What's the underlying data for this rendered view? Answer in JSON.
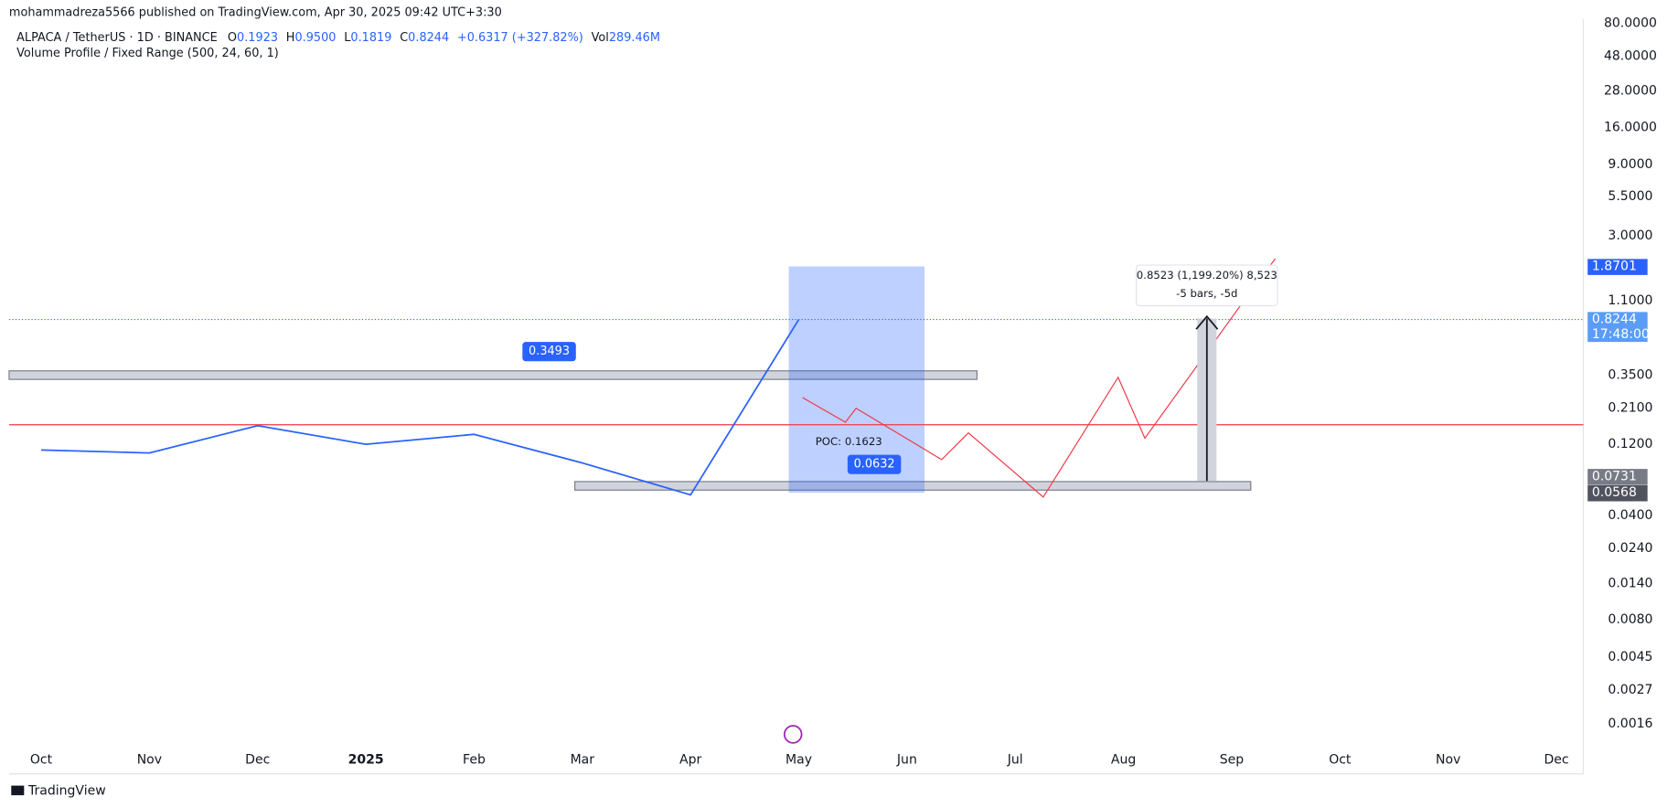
{
  "header": {
    "publisher": "mohammadreza5566 published on TradingView.com, Apr 30, 2025 09:42 UTC+3:30",
    "symbol": "ALPACA / TetherUS · 1D · BINANCE",
    "ohlc": [
      {
        "key": "O",
        "value": "0.1923"
      },
      {
        "key": "H",
        "value": "0.9500"
      },
      {
        "key": "L",
        "value": "0.1819"
      },
      {
        "key": "C",
        "value": "0.8244"
      }
    ],
    "change": "+0.6317 (+327.82%)",
    "vol_key": "Vol",
    "vol_value": "289.46M",
    "indicator": "Volume Profile / Fixed Range (500, 24, 60, 1)"
  },
  "footer": {
    "brand": "TradingView"
  },
  "chart_data": {
    "type": "line",
    "log_scale": true,
    "categories": [
      "Oct",
      "Nov",
      "Dec",
      "2025",
      "Feb",
      "Mar",
      "Apr",
      "May",
      "Jun",
      "Jul",
      "Aug",
      "Sep",
      "Oct",
      "Nov",
      "Dec"
    ],
    "series": [
      {
        "name": "ALPACA / TetherUS",
        "color": "#2962ff",
        "values": [
          0.11,
          0.105,
          0.16,
          0.12,
          0.14,
          0.09,
          0.055,
          0.8244,
          null,
          null,
          null,
          null,
          null,
          null,
          null
        ]
      }
    ],
    "ylim": [
      0.0011,
      85
    ],
    "yticks": [
      {
        "value": 80,
        "label": "80.0000"
      },
      {
        "value": 48,
        "label": "48.0000"
      },
      {
        "value": 28,
        "label": "28.0000"
      },
      {
        "value": 16,
        "label": "16.0000"
      },
      {
        "value": 9,
        "label": "9.0000"
      },
      {
        "value": 5.5,
        "label": "5.5000"
      },
      {
        "value": 3,
        "label": "3.0000"
      },
      {
        "value": 1.1,
        "label": "1.1000"
      },
      {
        "value": 0.35,
        "label": "0.3500"
      },
      {
        "value": 0.21,
        "label": "0.2100"
      },
      {
        "value": 0.12,
        "label": "0.1200"
      },
      {
        "value": 0.04,
        "label": "0.0400"
      },
      {
        "value": 0.024,
        "label": "0.0240"
      },
      {
        "value": 0.014,
        "label": "0.0140"
      },
      {
        "value": 0.008,
        "label": "0.0080"
      },
      {
        "value": 0.0045,
        "label": "0.0045"
      },
      {
        "value": 0.0027,
        "label": "0.0027"
      },
      {
        "value": 0.0016,
        "label": "0.0016"
      }
    ],
    "price_labels": [
      {
        "value": 1.8701,
        "label": "1.8701",
        "color": "#2962ff"
      },
      {
        "value": 0.8244,
        "label": "0.8244",
        "color": "#5b9cf6"
      },
      {
        "value": 0.0731,
        "label": "0.0731",
        "color": "#787b86"
      },
      {
        "value": 0.0568,
        "label": "0.0568",
        "color": "#50535e"
      }
    ],
    "countdown": "17:48:00",
    "zones": [
      {
        "value": 0.3493,
        "label": "0.3493"
      },
      {
        "value": 0.0632,
        "label": "0.0632"
      }
    ],
    "poc": {
      "value": 0.1623,
      "label": "POC: 0.1623"
    },
    "measure": {
      "line1": "0.8523 (1,199.20%) 8,523",
      "line2": "-5 bars, -5d"
    }
  }
}
